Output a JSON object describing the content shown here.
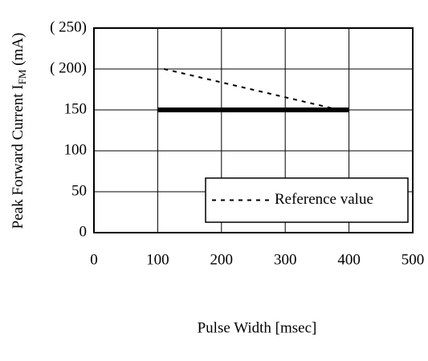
{
  "chart_data": {
    "type": "line",
    "xlabel": "Pulse Width [msec]",
    "ylabel": "Peak Forward Current  I",
    "ylabel_sub": "FM",
    "ylabel_unit": " (mA)",
    "series": [
      {
        "color": "#000000",
        "style": "solid",
        "x": [
          100,
          400
        ],
        "values": [
          150,
          150
        ]
      },
      {
        "name": "Reference value",
        "color": "#000000",
        "style": "dashed",
        "x": [
          110,
          385
        ],
        "values": [
          200,
          150
        ]
      }
    ],
    "xlim": [
      0,
      500
    ],
    "xticks": [
      0,
      100,
      200,
      300,
      400,
      500
    ],
    "ylim": [
      0,
      250
    ],
    "yticks": [
      0,
      50,
      100,
      150,
      {
        "value": 200,
        "label": "( 200)"
      },
      {
        "value": 250,
        "label": "( 250)"
      }
    ],
    "grid": true,
    "legend": "lower right"
  }
}
